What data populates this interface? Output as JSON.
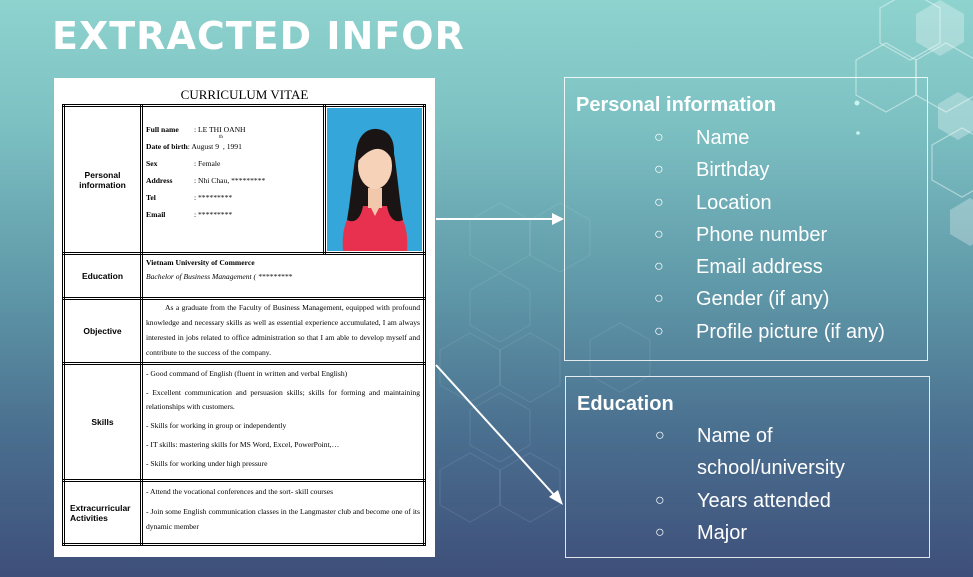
{
  "slide": {
    "title": "EXTRACTED INFOR"
  },
  "cv": {
    "title": "CURRICULUM VITAE",
    "sections": {
      "personal": {
        "label_line1": "Personal",
        "label_line2": "information",
        "fields": [
          {
            "key": "Full name",
            "value": ": LE THI OANH"
          },
          {
            "key": "Date of birth",
            "value": ": August 9",
            "sup": "th",
            "value_tail": " , 1991"
          },
          {
            "key": "Sex",
            "value": ": Female"
          },
          {
            "key": "Address",
            "value": ": Nhi Chau, *********"
          },
          {
            "key": "Tel",
            "value": ": *********"
          },
          {
            "key": "Email",
            "value": ": *********"
          }
        ]
      },
      "education": {
        "label": "Education",
        "school": "Vietnam University of Commerce",
        "degree": "Bachelor of Business Management ( *********"
      },
      "objective": {
        "label": "Objective",
        "text": "As a graduate from the Faculty of Business Management, equipped with profound knowledge and necessary skills as well as essential experience accumulated, I am always interested in jobs related to office administration so that I am able to develop myself and contribute to the success of the company."
      },
      "skills": {
        "label": "Skills",
        "items": [
          "- Good command of  English (fluent in written and verbal English)",
          "- Excellent communication and persuasion skills; skills for forming and maintaining relationships with customers.",
          "- Skills for working in group or independently",
          "- IT skills: mastering skills for MS Word, Excel, PowerPoint,…",
          "- Skills for working under high pressure"
        ]
      },
      "extracurricular": {
        "label_line1": "Extracurricular",
        "label_line2": "Activities",
        "items": [
          "- Attend the vocational conferences and the sort- skill courses",
          "- Join some English communication classes in the Langmaster club and become one of its dynamic member"
        ]
      }
    }
  },
  "personal_panel": {
    "title": "Personal information",
    "bullet": "○",
    "items": [
      "Name",
      "Birthday",
      "Location",
      "Phone number",
      "Email address",
      "Gender (if any)",
      "Profile picture (if any)"
    ]
  },
  "education_panel": {
    "title": "Education",
    "bullet": "○",
    "items": [
      "Name of school/university",
      "Years attended",
      "Major"
    ]
  },
  "colors": {
    "background_top": "#8fd3cf",
    "background_bottom": "#3e4f7a",
    "photo_background": "#34a6d9",
    "panel_text": "#ffffff"
  },
  "icons": [
    "photo-portrait",
    "arrow-right-icon",
    "arrow-diagonal-icon"
  ]
}
